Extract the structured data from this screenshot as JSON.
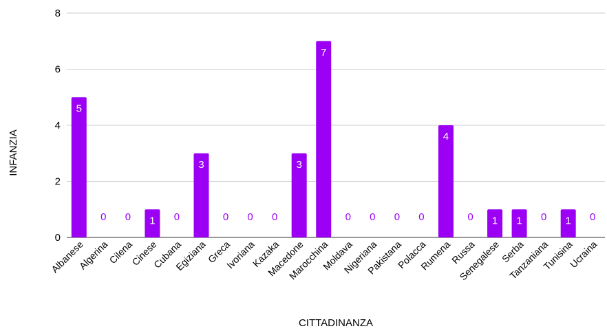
{
  "chart_data": {
    "type": "bar",
    "xlabel": "CITTADINANZA",
    "ylabel": "INFANZIA",
    "ylim": [
      0,
      8
    ],
    "yticks": [
      0,
      2,
      4,
      6,
      8
    ],
    "grid": true,
    "categories": [
      "Albanese",
      "Algerina",
      "Cilena",
      "Cinese",
      "Cubana",
      "Egiziana",
      "Greca",
      "Ivoriana",
      "Kazaka",
      "Macedone",
      "Marocchina",
      "Moldava",
      "Nigeriana",
      "Pakistana",
      "Polacca",
      "Rumena",
      "Russa",
      "Senegalese",
      "Serba",
      "Tanzaniana",
      "Tunisina",
      "Ucraina"
    ],
    "values": [
      5,
      0,
      0,
      1,
      0,
      3,
      0,
      0,
      0,
      3,
      7,
      0,
      0,
      0,
      0,
      4,
      0,
      1,
      1,
      0,
      1,
      0
    ],
    "bar_color": "#9b00f5",
    "label_inside_color": "#ffffff",
    "label_zero_color": "#9b00f5",
    "grid_color": "#cccccc"
  }
}
